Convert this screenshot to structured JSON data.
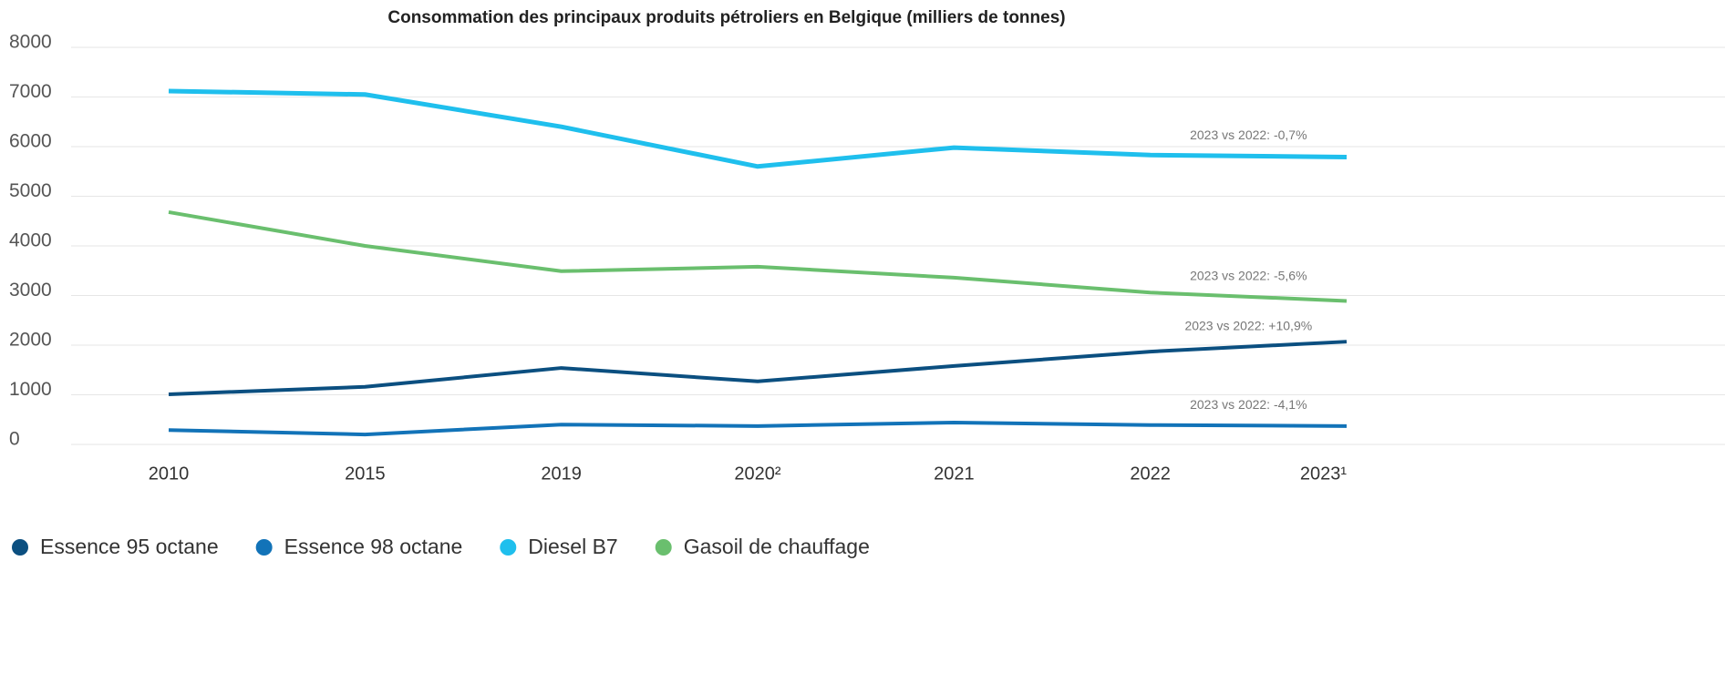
{
  "chart_data": {
    "type": "line",
    "title": "Consommation des principaux produits pétroliers en Belgique (milliers de tonnes)",
    "categories": [
      "2010",
      "2015",
      "2019",
      "2020²",
      "2021",
      "2022",
      "2023¹"
    ],
    "series": [
      {
        "name": "Essence 95 octane",
        "color": "#0b4f80",
        "values": [
          1010,
          1160,
          1540,
          1270,
          1580,
          1870,
          2070
        ],
        "annotation": "2023 vs 2022: +10,9%"
      },
      {
        "name": "Essence 98 octane",
        "color": "#1273b8",
        "values": [
          290,
          200,
          400,
          370,
          440,
          390,
          370
        ],
        "annotation": "2023 vs 2022: -4,1%"
      },
      {
        "name": "Diesel B7",
        "color": "#1fbfed",
        "values": [
          7120,
          7050,
          6400,
          5600,
          5980,
          5830,
          5790
        ],
        "annotation": "2023 vs 2022: -0,7%"
      },
      {
        "name": "Gasoil de chauffage",
        "color": "#6abf6e",
        "values": [
          4680,
          4000,
          3490,
          3580,
          3360,
          3060,
          2890
        ],
        "annotation": "2023 vs 2022: -5,6%"
      }
    ],
    "ylim": [
      0,
      8000
    ],
    "yticks": [
      0,
      1000,
      2000,
      3000,
      4000,
      5000,
      6000,
      7000,
      8000
    ],
    "grid": true
  }
}
